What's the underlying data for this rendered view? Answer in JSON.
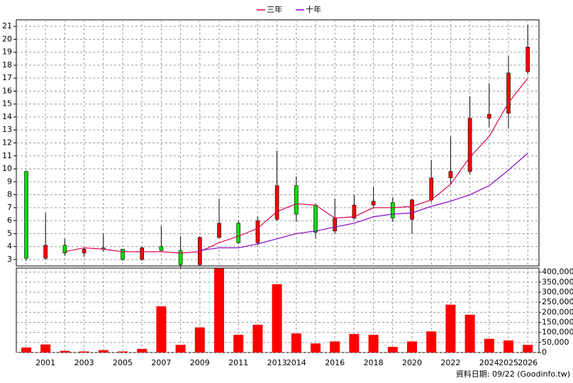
{
  "chart_data": [
    {
      "type": "candlestick",
      "categories": [
        "2000",
        "2001",
        "2002",
        "2003",
        "2004",
        "2005",
        "2006",
        "2007",
        "2008",
        "2009",
        "2010",
        "2011",
        "2012",
        "2013",
        "2014",
        "2015",
        "2016",
        "2017",
        "2018",
        "2019",
        "2020",
        "2021",
        "2022",
        "2023",
        "2024",
        "2025",
        "2026"
      ],
      "x_labels": [
        null,
        "2001",
        null,
        "2003",
        null,
        "2005",
        null,
        "2007",
        null,
        "2009",
        null,
        "2011",
        null,
        "2013",
        "2014",
        null,
        "2016",
        null,
        "2018",
        null,
        "2020",
        null,
        "2022",
        null,
        "2024",
        "2025",
        "2026"
      ],
      "open": [
        9.8,
        3.1,
        4.1,
        3.5,
        3.9,
        3.8,
        3.0,
        4.0,
        3.7,
        2.6,
        4.7,
        5.8,
        4.3,
        6.1,
        8.7,
        7.2,
        5.2,
        6.2,
        7.2,
        7.4,
        6.1,
        7.6,
        9.3,
        9.8,
        13.9,
        14.3,
        17.5
      ],
      "high": [
        9.8,
        6.6,
        4.6,
        3.9,
        5.0,
        3.8,
        4.0,
        5.6,
        4.8,
        4.8,
        7.7,
        6.0,
        6.3,
        11.4,
        9.4,
        7.3,
        7.7,
        8.0,
        8.6,
        7.8,
        7.7,
        10.7,
        12.5,
        15.6,
        16.6,
        18.7,
        21.1
      ],
      "low": [
        2.9,
        3.0,
        3.3,
        3.2,
        3.6,
        2.9,
        2.9,
        3.6,
        2.3,
        2.5,
        4.6,
        4.2,
        4.1,
        6.0,
        5.9,
        4.6,
        5.0,
        6.1,
        7.0,
        5.9,
        5.0,
        7.4,
        8.8,
        9.6,
        13.2,
        13.1,
        17.3
      ],
      "close": [
        3.1,
        4.1,
        3.5,
        3.8,
        3.8,
        3.0,
        3.9,
        3.7,
        2.6,
        4.7,
        5.8,
        4.3,
        6.0,
        8.7,
        6.5,
        5.1,
        6.2,
        7.2,
        7.5,
        6.2,
        7.6,
        9.3,
        9.8,
        13.9,
        14.2,
        17.4,
        19.4
      ],
      "up_color": "#ff0000",
      "down_color": "#00dd00",
      "series": [
        {
          "name": "三年",
          "color": "#dd0055",
          "values": [
            null,
            null,
            3.6,
            3.9,
            3.8,
            3.6,
            3.6,
            3.6,
            3.5,
            3.6,
            4.3,
            4.8,
            5.4,
            6.7,
            7.3,
            7.2,
            6.2,
            6.3,
            7.0,
            7.0,
            7.1,
            7.6,
            8.8,
            10.9,
            12.5,
            15.1,
            17.0
          ]
        },
        {
          "name": "十年",
          "color": "#8800cc",
          "values": [
            null,
            null,
            null,
            null,
            null,
            null,
            null,
            null,
            null,
            3.7,
            3.9,
            3.9,
            4.2,
            4.6,
            5.0,
            5.2,
            5.5,
            5.8,
            6.3,
            6.5,
            6.6,
            7.1,
            7.5,
            8.0,
            8.7,
            9.9,
            11.2
          ]
        }
      ],
      "ylim": [
        2.5,
        21.5
      ],
      "yticks": [
        3,
        4,
        5,
        6,
        7,
        8,
        9,
        10,
        11,
        12,
        13,
        14,
        15,
        16,
        17,
        18,
        19,
        20,
        21
      ],
      "grid": true,
      "legend": "top"
    },
    {
      "type": "bar",
      "values": [
        25000,
        40000,
        8000,
        5000,
        12000,
        5000,
        18000,
        230000,
        38000,
        125000,
        418000,
        88000,
        138000,
        340000,
        95000,
        45000,
        55000,
        92000,
        88000,
        28000,
        55000,
        105000,
        238000,
        188000,
        68000,
        60000,
        38000
      ],
      "color": "#ff0000",
      "ylim": [
        0,
        420000
      ],
      "yticks": [
        0,
        {
          "value": 50000,
          "label": "50,000"
        },
        {
          "value": 100000,
          "label": "100,000"
        },
        {
          "value": 150000,
          "label": "150,000"
        },
        {
          "value": 200000,
          "label": "200,000"
        },
        {
          "value": 250000,
          "label": "250,000"
        },
        {
          "value": 300000,
          "label": "300,000"
        },
        {
          "value": 350000,
          "label": "350,000"
        },
        {
          "value": 400000,
          "label": "400,000"
        }
      ],
      "grid": true,
      "note": "資料日期: 09/22 (Goodinfo.tw)"
    }
  ]
}
